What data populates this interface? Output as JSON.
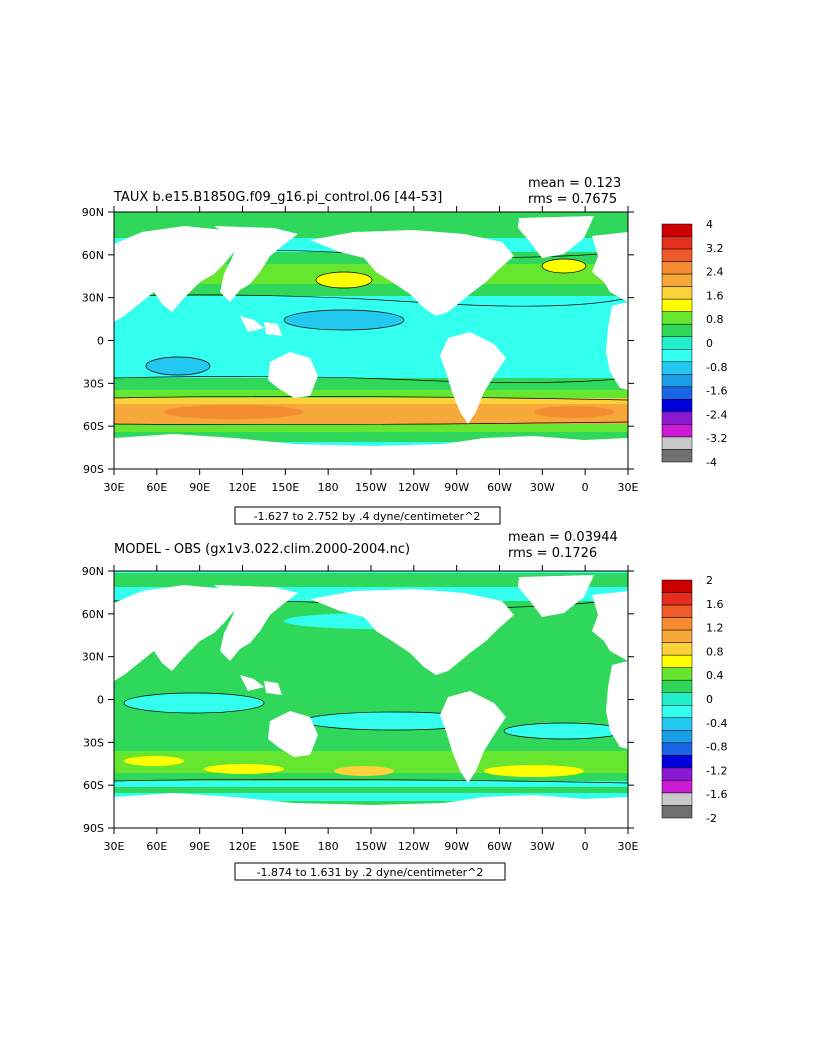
{
  "panels": [
    {
      "title": "TAUX b.e15.B1850G.f09_g16.pi_control.06 [44-53]",
      "mean": "mean = 0.123",
      "rms": "rms = 0.7675",
      "range_label": "-1.627 to 2.752 by .4 dyne/centimeter^2",
      "lat_ticks": [
        "90N",
        "60N",
        "30N",
        "0",
        "30S",
        "60S",
        "90S"
      ],
      "lon_ticks": [
        "30E",
        "60E",
        "90E",
        "120E",
        "150E",
        "180",
        "150W",
        "120W",
        "90W",
        "60W",
        "30W",
        "0",
        "30E"
      ],
      "colorbar": {
        "labels": [
          "4",
          "3.2",
          "2.4",
          "1.6",
          "0.8",
          "0",
          "-0.8",
          "-1.6",
          "-2.4",
          "-3.2",
          "-4"
        ],
        "colors": [
          "#cc0000",
          "#e62e1e",
          "#f05a2a",
          "#f58c32",
          "#f7a83a",
          "#fcd23a",
          "#ffff00",
          "#66e62e",
          "#2fd85a",
          "#22eecc",
          "#33ffee",
          "#22c8f0",
          "#1a9ee6",
          "#1a64e6",
          "#0000dd",
          "#8a1ad2",
          "#cc1ad6",
          "#c8c8c8",
          "#707070"
        ]
      }
    },
    {
      "title": "MODEL - OBS (gx1v3.022.clim.2000-2004.nc)",
      "mean": "mean = 0.03944",
      "rms": "rms = 0.1726",
      "range_label": "-1.874 to 1.631 by .2 dyne/centimeter^2",
      "lat_ticks": [
        "90N",
        "60N",
        "30N",
        "0",
        "30S",
        "60S",
        "90S"
      ],
      "lon_ticks": [
        "30E",
        "60E",
        "90E",
        "120E",
        "150E",
        "180",
        "150W",
        "120W",
        "90W",
        "60W",
        "30W",
        "0",
        "30E"
      ],
      "colorbar": {
        "labels": [
          "2",
          "1.6",
          "1.2",
          "0.8",
          "0.4",
          "0",
          "-0.4",
          "-0.8",
          "-1.2",
          "-1.6",
          "-2"
        ],
        "colors": [
          "#cc0000",
          "#e62e1e",
          "#f05a2a",
          "#f58c32",
          "#f7a83a",
          "#fcd23a",
          "#ffff00",
          "#66e62e",
          "#2fd85a",
          "#22eecc",
          "#33ffee",
          "#22c8f0",
          "#1a9ee6",
          "#1a64e6",
          "#0000dd",
          "#8a1ad2",
          "#cc1ad6",
          "#c8c8c8",
          "#707070"
        ]
      }
    }
  ]
}
